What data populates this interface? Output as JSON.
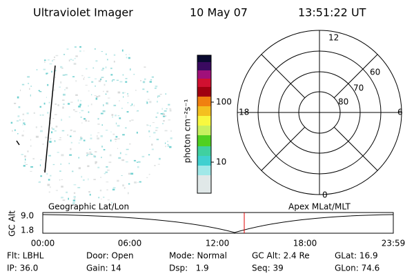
{
  "header": {
    "instrument": "Ultraviolet Imager",
    "date": "10 May 07",
    "time": "13:51:22 UT"
  },
  "colorbar": {
    "unit": "photon cm⁻²s⁻¹",
    "ticks": [
      "100",
      "10"
    ]
  },
  "polar": {
    "mlt_labels": [
      "12",
      "18",
      "6",
      "0"
    ],
    "lat_labels": [
      "60",
      "70",
      "80"
    ]
  },
  "timeline": {
    "axis_label": "GC Alt",
    "alt_labels": [
      "9.0",
      "1.8"
    ],
    "left_title": "Geographic Lat/Lon",
    "right_title": "Apex MLat/MLT",
    "time_labels": [
      "00:00",
      "06:00",
      "12:00",
      "18:00",
      "23:59"
    ]
  },
  "info": {
    "rows": [
      [
        "Flt: LBHL",
        "Door: Open",
        "Mode: Normal",
        "GC Alt: 2.4 Re",
        "GLat: 16.9"
      ],
      [
        "IP: 36.0",
        "Gain: 14",
        "Dsp:   1.9",
        "Seq: 39",
        "GLon: 74.6"
      ]
    ]
  }
}
